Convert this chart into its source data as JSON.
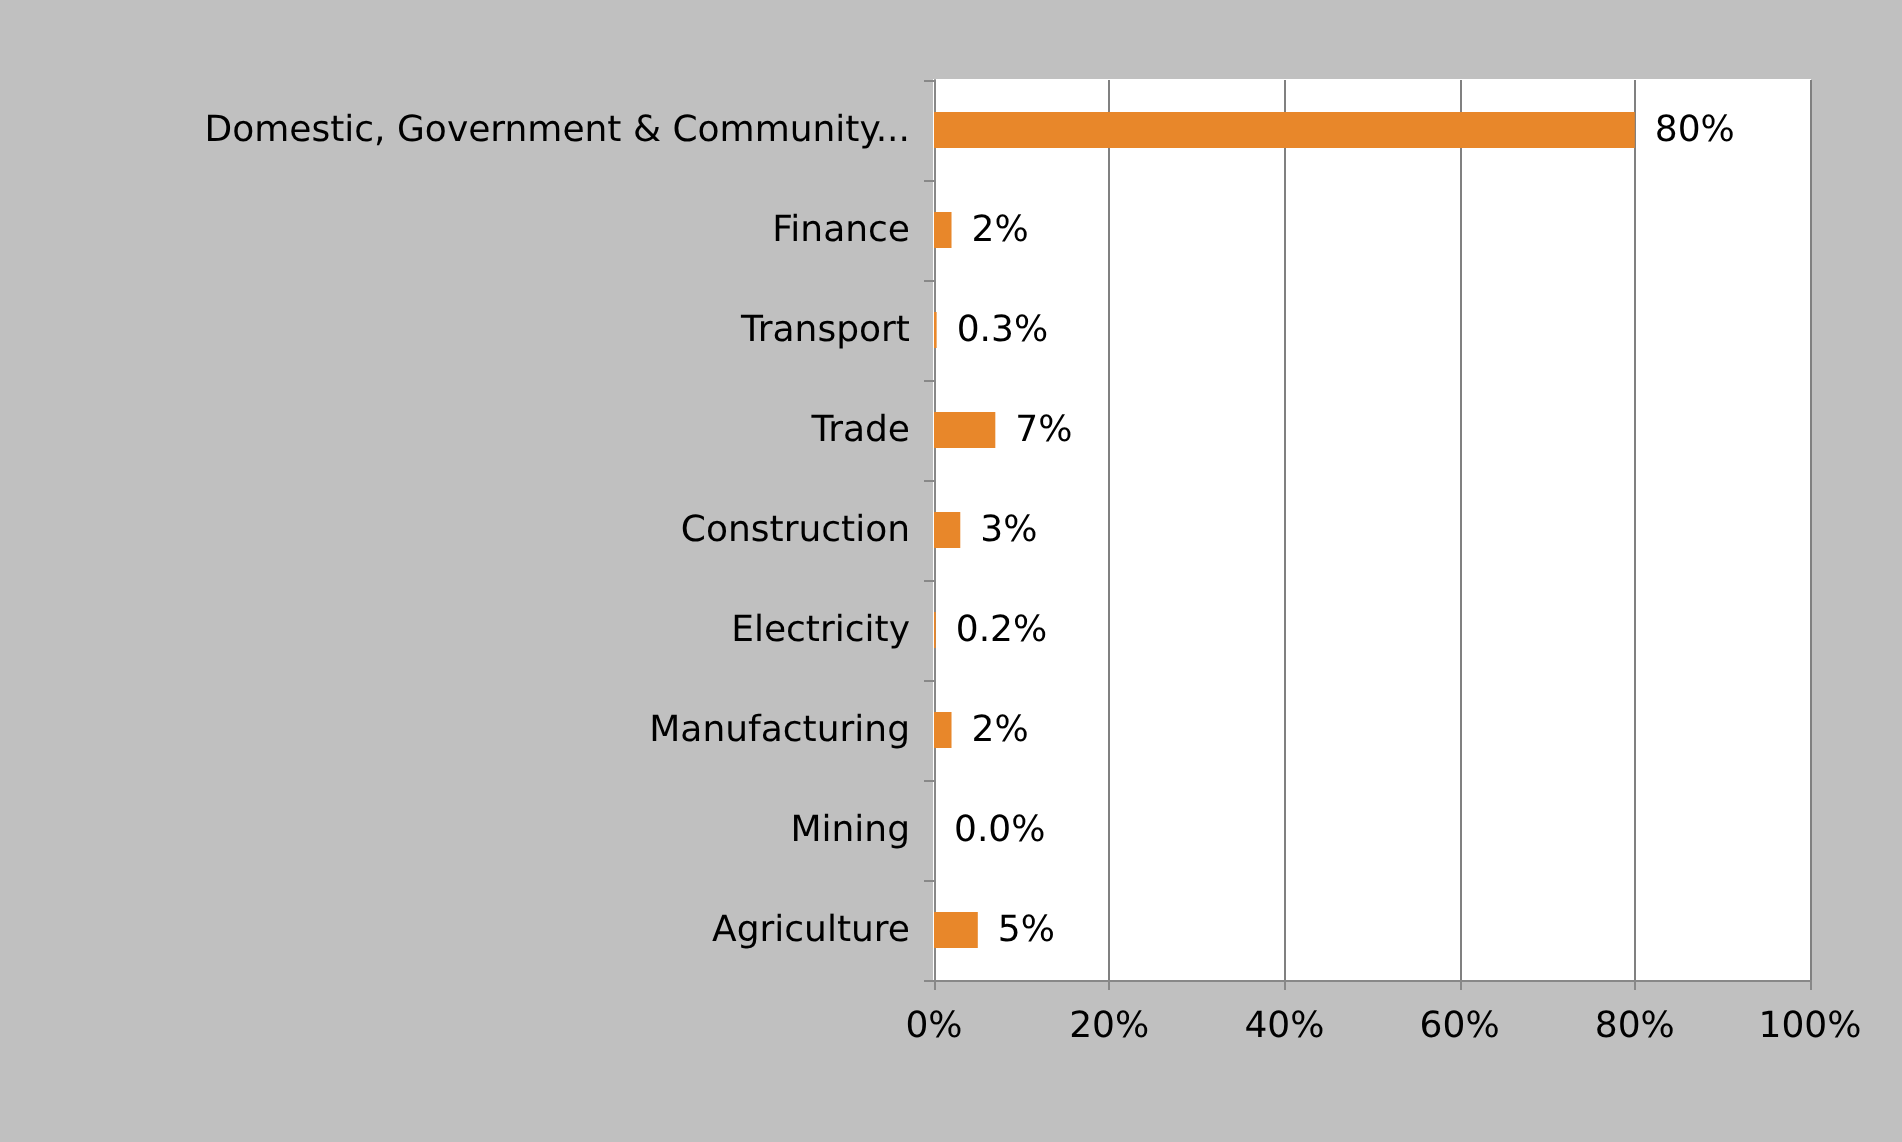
{
  "chart_data": {
    "type": "bar",
    "orientation": "horizontal",
    "categories": [
      "Domestic, Government & Community...",
      "Finance",
      "Transport",
      "Trade",
      "Construction",
      "Electricity",
      "Manufacturing",
      "Mining",
      "Agriculture"
    ],
    "values": [
      80,
      2,
      0.3,
      7,
      3,
      0.2,
      2,
      0.0,
      5
    ],
    "value_labels": [
      "80%",
      "2%",
      "0.3%",
      "7%",
      "3%",
      "0.2%",
      "2%",
      "0.0%",
      "5%"
    ],
    "color": "#e8872a",
    "xlim": [
      0,
      100
    ],
    "xticks": [
      {
        "value": 0,
        "label": "0%"
      },
      {
        "value": 20,
        "label": "20%"
      },
      {
        "value": 40,
        "label": "40%"
      },
      {
        "value": 60,
        "label": "60%"
      },
      {
        "value": 80,
        "label": "80%"
      },
      {
        "value": 100,
        "label": "100%"
      }
    ],
    "grid": "x"
  }
}
